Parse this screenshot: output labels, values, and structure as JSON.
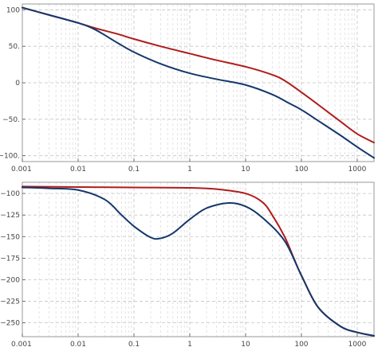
{
  "chart_data": [
    {
      "type": "line",
      "x_scale": "log",
      "xlim": [
        0.001,
        2000
      ],
      "ylim": [
        -108,
        108
      ],
      "x_ticks": [
        0.001,
        0.01,
        0.1,
        1,
        10,
        100,
        1000
      ],
      "x_tick_labels": [
        "0.001",
        "0.01",
        "0.1",
        "1",
        "10",
        "100",
        "1000"
      ],
      "y_ticks": [
        100,
        50,
        0,
        -50,
        -100
      ],
      "y_tick_labels": [
        "100",
        "50.",
        "0",
        "−50.",
        "−100."
      ],
      "grid": true,
      "series": [
        {
          "color": "#b01c1c",
          "points": [
            [
              0.001,
              103
            ],
            [
              0.003,
              93
            ],
            [
              0.01,
              82
            ],
            [
              0.02,
              75
            ],
            [
              0.05,
              67
            ],
            [
              0.1,
              60
            ],
            [
              0.3,
              50
            ],
            [
              1,
              40
            ],
            [
              3,
              31
            ],
            [
              10,
              22
            ],
            [
              30,
              11
            ],
            [
              50,
              3
            ],
            [
              100,
              -13
            ],
            [
              200,
              -30
            ],
            [
              500,
              -53
            ],
            [
              1000,
              -70
            ],
            [
              2000,
              -82
            ]
          ]
        },
        {
          "color": "#14376b",
          "points": [
            [
              0.001,
              103
            ],
            [
              0.003,
              93
            ],
            [
              0.01,
              82
            ],
            [
              0.02,
              73
            ],
            [
              0.05,
              55
            ],
            [
              0.1,
              42
            ],
            [
              0.3,
              26
            ],
            [
              1,
              13
            ],
            [
              3,
              5
            ],
            [
              10,
              -3
            ],
            [
              30,
              -16
            ],
            [
              60,
              -28
            ],
            [
              100,
              -37
            ],
            [
              200,
              -52
            ],
            [
              500,
              -72
            ],
            [
              1000,
              -88
            ],
            [
              2000,
              -103
            ]
          ]
        }
      ]
    },
    {
      "type": "line",
      "x_scale": "log",
      "xlim": [
        0.001,
        2000
      ],
      "ylim": [
        -266,
        -87
      ],
      "x_ticks": [
        0.001,
        0.01,
        0.1,
        1,
        10,
        100,
        1000
      ],
      "x_tick_labels": [
        "0.001",
        "0.01",
        "0.1",
        "1",
        "10",
        "100",
        "1000"
      ],
      "y_ticks": [
        -100,
        -125,
        -150,
        -175,
        -200,
        -225,
        -250
      ],
      "y_tick_labels": [
        "−100",
        "−125",
        "−150",
        "−175",
        "−200",
        "−225",
        "−250"
      ],
      "grid": true,
      "series": [
        {
          "color": "#b01c1c",
          "points": [
            [
              0.001,
              -92
            ],
            [
              0.01,
              -92.5
            ],
            [
              0.1,
              -93
            ],
            [
              1,
              -93.5
            ],
            [
              3,
              -95
            ],
            [
              10,
              -100
            ],
            [
              20,
              -110
            ],
            [
              30,
              -125
            ],
            [
              50,
              -150
            ],
            [
              70,
              -172
            ],
            [
              100,
              -195
            ],
            [
              200,
              -232
            ],
            [
              500,
              -254
            ],
            [
              1000,
              -261
            ],
            [
              2000,
              -265
            ]
          ]
        },
        {
          "color": "#14376b",
          "points": [
            [
              0.001,
              -93
            ],
            [
              0.003,
              -94
            ],
            [
              0.01,
              -96
            ],
            [
              0.03,
              -107
            ],
            [
              0.06,
              -125
            ],
            [
              0.1,
              -138
            ],
            [
              0.2,
              -151
            ],
            [
              0.3,
              -152
            ],
            [
              0.5,
              -146
            ],
            [
              1,
              -130
            ],
            [
              2,
              -117
            ],
            [
              5,
              -111
            ],
            [
              10,
              -115
            ],
            [
              20,
              -128
            ],
            [
              50,
              -155
            ],
            [
              100,
              -195
            ],
            [
              200,
              -232
            ],
            [
              500,
              -254
            ],
            [
              1000,
              -261
            ],
            [
              2000,
              -265
            ]
          ]
        }
      ]
    }
  ]
}
